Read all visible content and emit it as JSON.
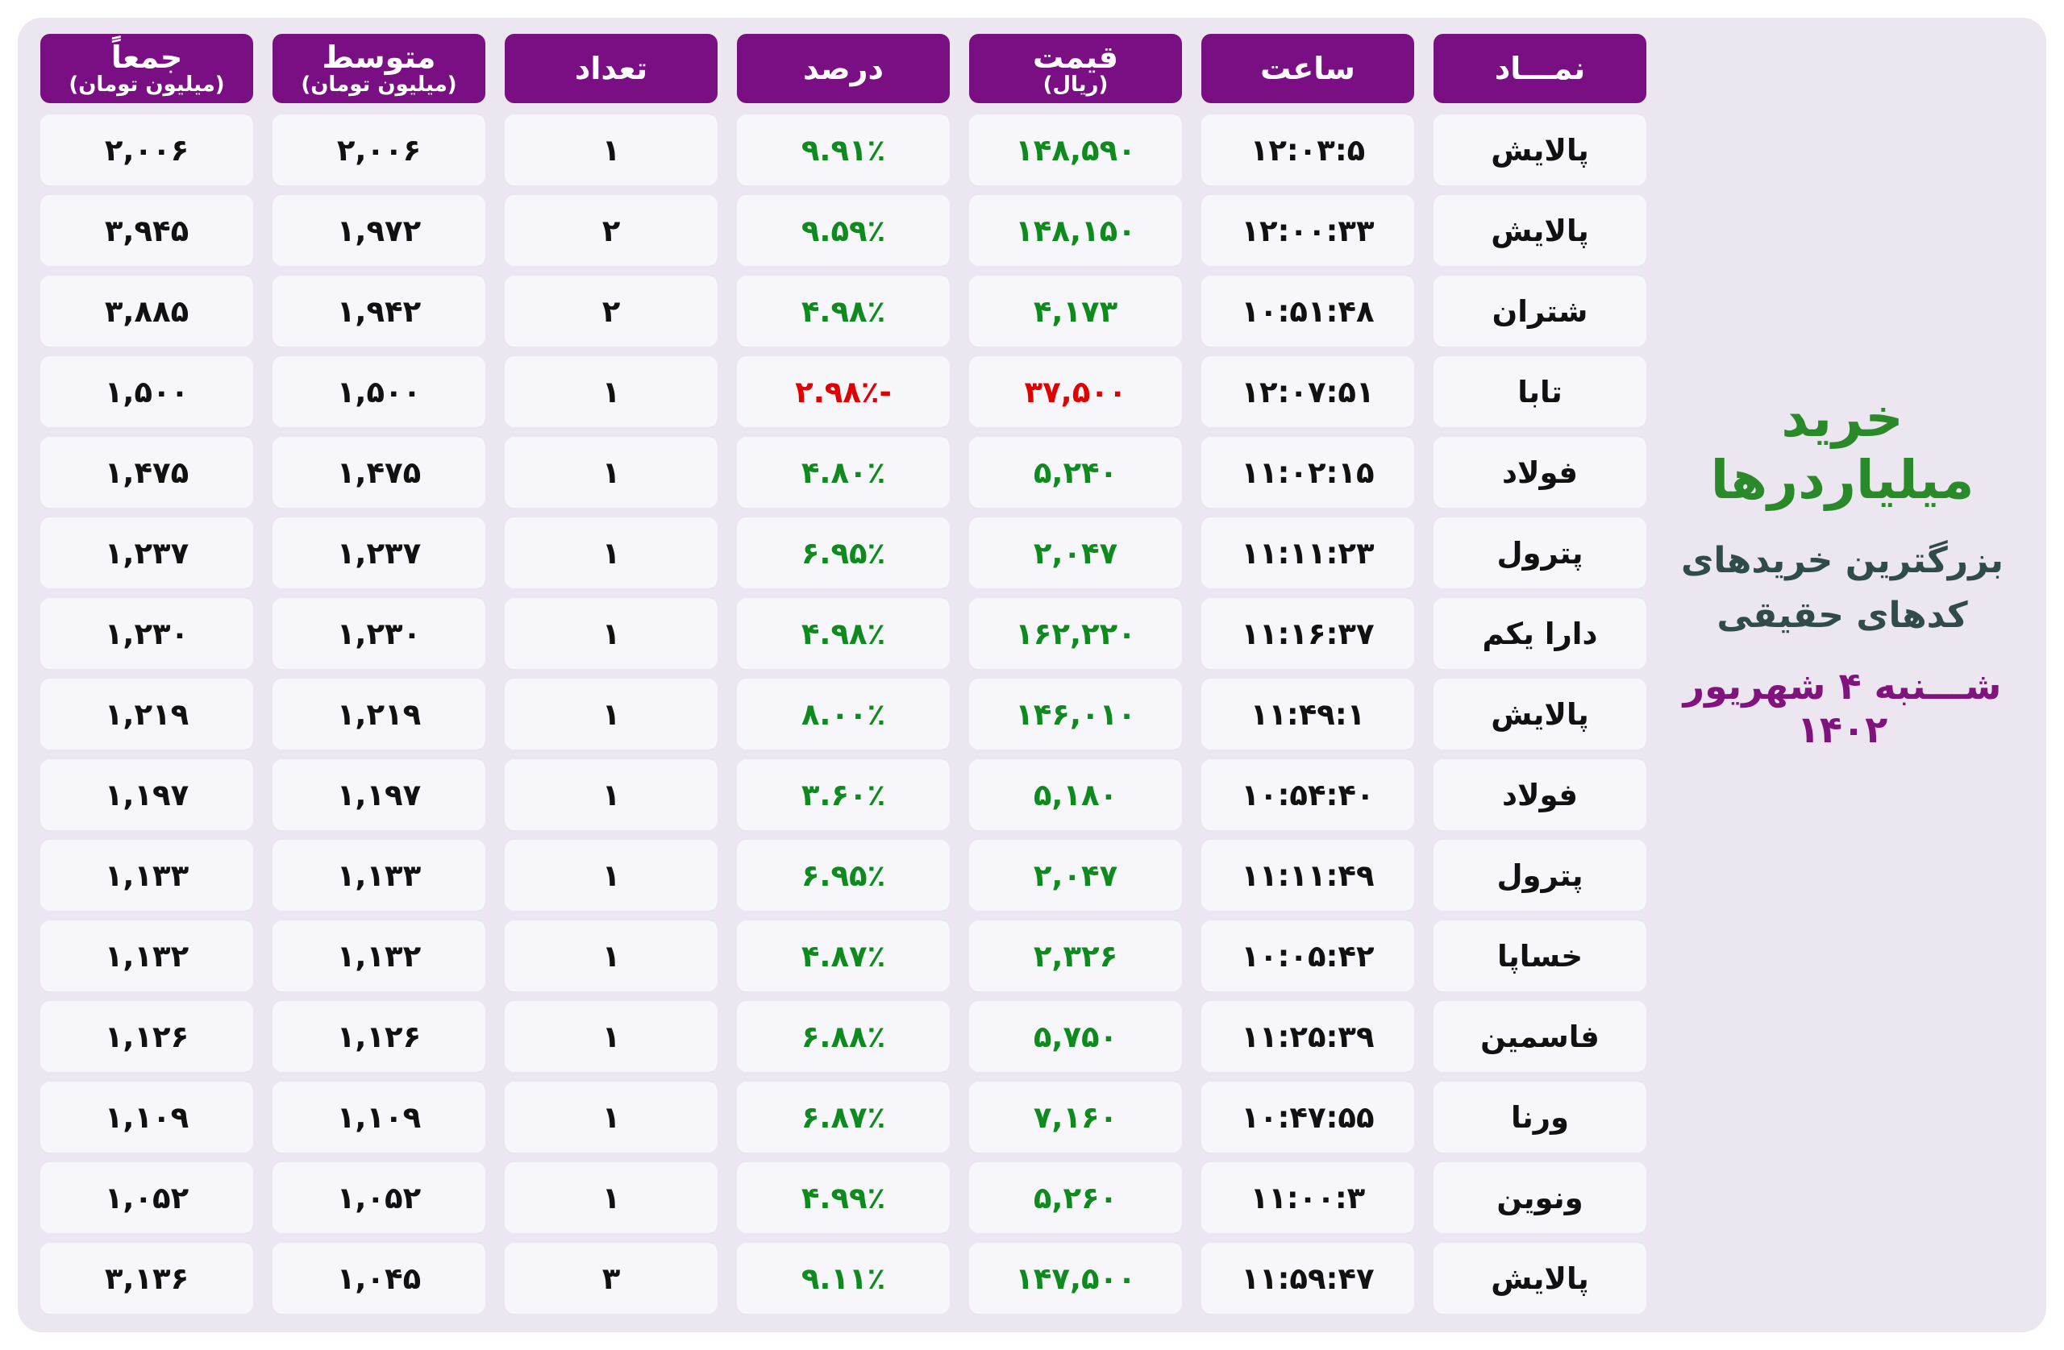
{
  "side": {
    "title": "خرید میلیاردرها",
    "subtitle_line1": "بزرگترین خریدهای",
    "subtitle_line2": "کدهای حقیقی",
    "date": "شـــنبه ۴ شهریور ۱۴۰۲"
  },
  "headers": {
    "symbol": "نمـــاد",
    "time": "ساعت",
    "price": "قیمت",
    "price_unit": "(ریال)",
    "percent": "درصد",
    "count": "تعداد",
    "average": "متوسط",
    "average_unit": "(میلیون تومان)",
    "total": "جمعاً",
    "total_unit": "(میلیون تومان)"
  },
  "colors": {
    "header_bg": "#7a0f84",
    "positive": "#0f8a1f",
    "negative": "#e00000",
    "title_green": "#2a8a2a",
    "date_purple": "#80137e"
  },
  "rows": [
    {
      "symbol": "پالایش",
      "time": "۱۲:۰۳:۵",
      "price": "۱۴۸,۵۹۰",
      "percent": "۹.۹۱٪",
      "count": "۱",
      "average": "۲,۰۰۶",
      "total": "۲,۰۰۶",
      "direction": "up"
    },
    {
      "symbol": "پالایش",
      "time": "۱۲:۰۰:۳۳",
      "price": "۱۴۸,۱۵۰",
      "percent": "۹.۵۹٪",
      "count": "۲",
      "average": "۱,۹۷۲",
      "total": "۳,۹۴۵",
      "direction": "up"
    },
    {
      "symbol": "شتران",
      "time": "۱۰:۵۱:۴۸",
      "price": "۴,۱۷۳",
      "percent": "۴.۹۸٪",
      "count": "۲",
      "average": "۱,۹۴۲",
      "total": "۳,۸۸۵",
      "direction": "up"
    },
    {
      "symbol": "تابا",
      "time": "۱۲:۰۷:۵۱",
      "price": "۳۷,۵۰۰",
      "percent": "-۲.۹۸٪",
      "count": "۱",
      "average": "۱,۵۰۰",
      "total": "۱,۵۰۰",
      "direction": "down"
    },
    {
      "symbol": "فولاد",
      "time": "۱۱:۰۲:۱۵",
      "price": "۵,۲۴۰",
      "percent": "۴.۸۰٪",
      "count": "۱",
      "average": "۱,۴۷۵",
      "total": "۱,۴۷۵",
      "direction": "up"
    },
    {
      "symbol": "پترول",
      "time": "۱۱:۱۱:۲۳",
      "price": "۲,۰۴۷",
      "percent": "۶.۹۵٪",
      "count": "۱",
      "average": "۱,۲۳۷",
      "total": "۱,۲۳۷",
      "direction": "up"
    },
    {
      "symbol": "دارا یکم",
      "time": "۱۱:۱۶:۳۷",
      "price": "۱۶۲,۲۲۰",
      "percent": "۴.۹۸٪",
      "count": "۱",
      "average": "۱,۲۳۰",
      "total": "۱,۲۳۰",
      "direction": "up"
    },
    {
      "symbol": "پالایش",
      "time": "۱۱:۴۹:۱",
      "price": "۱۴۶,۰۱۰",
      "percent": "۸.۰۰٪",
      "count": "۱",
      "average": "۱,۲۱۹",
      "total": "۱,۲۱۹",
      "direction": "up"
    },
    {
      "symbol": "فولاد",
      "time": "۱۰:۵۴:۴۰",
      "price": "۵,۱۸۰",
      "percent": "۳.۶۰٪",
      "count": "۱",
      "average": "۱,۱۹۷",
      "total": "۱,۱۹۷",
      "direction": "up"
    },
    {
      "symbol": "پترول",
      "time": "۱۱:۱۱:۴۹",
      "price": "۲,۰۴۷",
      "percent": "۶.۹۵٪",
      "count": "۱",
      "average": "۱,۱۳۳",
      "total": "۱,۱۳۳",
      "direction": "up"
    },
    {
      "symbol": "خساپا",
      "time": "۱۰:۰۵:۴۲",
      "price": "۲,۳۲۶",
      "percent": "۴.۸۷٪",
      "count": "۱",
      "average": "۱,۱۳۲",
      "total": "۱,۱۳۲",
      "direction": "up"
    },
    {
      "symbol": "فاسمین",
      "time": "۱۱:۲۵:۳۹",
      "price": "۵,۷۵۰",
      "percent": "۶.۸۸٪",
      "count": "۱",
      "average": "۱,۱۲۶",
      "total": "۱,۱۲۶",
      "direction": "up"
    },
    {
      "symbol": "ورنا",
      "time": "۱۰:۴۷:۵۵",
      "price": "۷,۱۶۰",
      "percent": "۶.۸۷٪",
      "count": "۱",
      "average": "۱,۱۰۹",
      "total": "۱,۱۰۹",
      "direction": "up"
    },
    {
      "symbol": "ونوین",
      "time": "۱۱:۰۰:۳",
      "price": "۵,۲۶۰",
      "percent": "۴.۹۹٪",
      "count": "۱",
      "average": "۱,۰۵۲",
      "total": "۱,۰۵۲",
      "direction": "up"
    },
    {
      "symbol": "پالایش",
      "time": "۱۱:۵۹:۴۷",
      "price": "۱۴۷,۵۰۰",
      "percent": "۹.۱۱٪",
      "count": "۳",
      "average": "۱,۰۴۵",
      "total": "۳,۱۳۶",
      "direction": "up"
    }
  ]
}
